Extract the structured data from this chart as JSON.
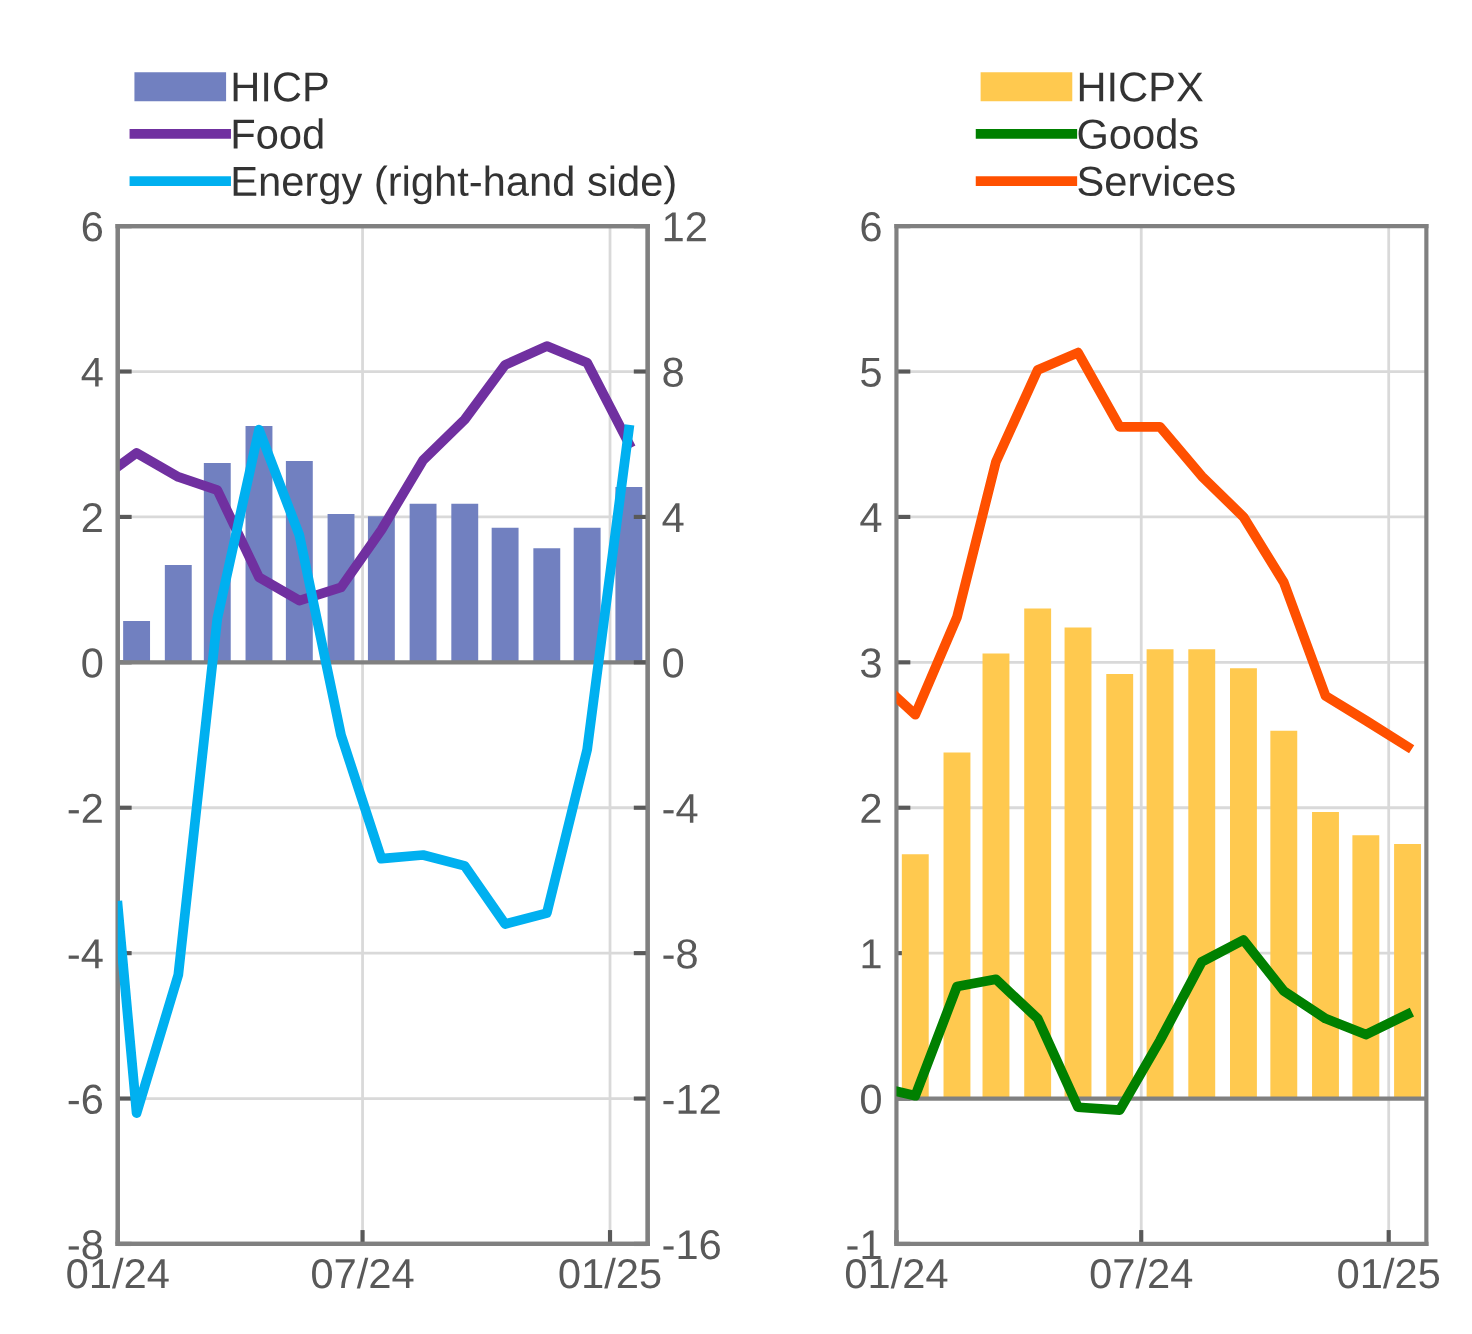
{
  "chart_data": [
    {
      "type": "bar",
      "legend": "top left",
      "grid": true,
      "x": [
        "2024-01-15",
        "2024-02-15",
        "2024-03-15",
        "2024-04-15",
        "2024-05-15",
        "2024-06-15",
        "2024-07-15",
        "2024-08-15",
        "2024-09-15",
        "2024-10-15",
        "2024-11-15",
        "2024-12-15",
        "2025-01-15"
      ],
      "xlim": [
        "2024-01-01",
        "2025-01-29"
      ],
      "xticks": [
        {
          "value": "2024-01-01",
          "label": "01/24"
        },
        {
          "value": "2024-07-01",
          "label": "07/24"
        },
        {
          "value": "2025-01-01",
          "label": "01/25"
        }
      ],
      "ylim": [
        -8,
        6
      ],
      "yticks": [
        -8,
        -6,
        -4,
        -2,
        0,
        2,
        4,
        6
      ],
      "y2lim": [
        -16,
        12
      ],
      "y2ticks": [
        -16,
        -12,
        -8,
        -4,
        0,
        4,
        8,
        12
      ],
      "series": [
        {
          "name": "HICP",
          "color": "#7180c0",
          "values": [
            0.57,
            1.34,
            2.74,
            3.25,
            2.77,
            2.04,
            2.01,
            2.18,
            2.18,
            1.85,
            1.57,
            1.85,
            2.41
          ]
        },
        {
          "name": "Food",
          "type": "line",
          "color": "#7030a0",
          "x": [
            "2024-01-01",
            "2024-01-15",
            "2024-02-15",
            "2024-03-15",
            "2024-04-15",
            "2024-05-15",
            "2024-06-15",
            "2024-07-15",
            "2024-08-15",
            "2024-09-15",
            "2024-10-15",
            "2024-11-15",
            "2024-12-15",
            "2025-01-15"
          ],
          "values": [
            2.69,
            2.88,
            2.55,
            2.37,
            1.17,
            0.85,
            1.03,
            1.82,
            2.78,
            3.34,
            4.09,
            4.35,
            4.12,
            3.01
          ]
        },
        {
          "name": "Energy (right-hand side)",
          "type": "line",
          "axis": "y2",
          "color": "#00b0f0",
          "x": [
            "2024-01-01",
            "2024-01-15",
            "2024-02-15",
            "2024-03-15",
            "2024-04-15",
            "2024-05-15",
            "2024-06-15",
            "2024-07-15",
            "2024-08-15",
            "2024-09-15",
            "2024-10-15",
            "2024-11-15",
            "2024-12-15",
            "2025-01-15"
          ],
          "values": [
            -6.7,
            -12.4,
            -8.6,
            1.2,
            6.4,
            3.5,
            -2.0,
            -5.4,
            -5.3,
            -5.6,
            -7.2,
            -6.9,
            -2.4,
            6.4
          ]
        }
      ]
    },
    {
      "type": "bar",
      "legend": "top",
      "grid": true,
      "x": [
        "2024-01-15",
        "2024-02-15",
        "2024-03-15",
        "2024-04-15",
        "2024-05-15",
        "2024-06-15",
        "2024-07-15",
        "2024-08-15",
        "2024-09-15",
        "2024-10-15",
        "2024-11-15",
        "2024-12-15",
        "2025-01-15"
      ],
      "xlim": [
        "2024-01-01",
        "2025-01-29"
      ],
      "xticks": [
        {
          "value": "2024-01-01",
          "label": "01/24"
        },
        {
          "value": "2024-07-01",
          "label": "07/24"
        },
        {
          "value": "2025-01-01",
          "label": "01/25"
        }
      ],
      "ylim": [
        -1,
        6
      ],
      "yticks": [
        -1,
        0,
        1,
        2,
        3,
        4,
        5,
        6
      ],
      "series": [
        {
          "name": "HICPX",
          "color": "#ffc94f",
          "values": [
            1.68,
            2.38,
            3.06,
            3.37,
            3.24,
            2.92,
            3.09,
            3.09,
            2.96,
            2.53,
            1.97,
            1.81,
            1.75
          ]
        },
        {
          "name": "Goods",
          "type": "line",
          "color": "#008000",
          "x": [
            "2024-01-01",
            "2024-01-15",
            "2024-02-15",
            "2024-03-15",
            "2024-04-15",
            "2024-05-15",
            "2024-06-15",
            "2024-07-15",
            "2024-08-15",
            "2024-09-15",
            "2024-10-15",
            "2024-11-15",
            "2024-12-15",
            "2025-01-15"
          ],
          "values": [
            0.05,
            0.02,
            0.77,
            0.82,
            0.55,
            -0.06,
            -0.08,
            0.4,
            0.94,
            1.09,
            0.74,
            0.55,
            0.44,
            0.58
          ]
        },
        {
          "name": "Services",
          "type": "line",
          "color": "#ff5000",
          "x": [
            "2024-01-01",
            "2024-01-15",
            "2024-02-15",
            "2024-03-15",
            "2024-04-15",
            "2024-05-15",
            "2024-06-15",
            "2024-07-15",
            "2024-08-15",
            "2024-09-15",
            "2024-10-15",
            "2024-11-15",
            "2024-12-15",
            "2025-01-15"
          ],
          "values": [
            2.76,
            2.64,
            3.31,
            4.38,
            5.01,
            5.13,
            4.62,
            4.62,
            4.28,
            4.0,
            3.55,
            2.77,
            2.6,
            2.42
          ]
        }
      ]
    }
  ]
}
